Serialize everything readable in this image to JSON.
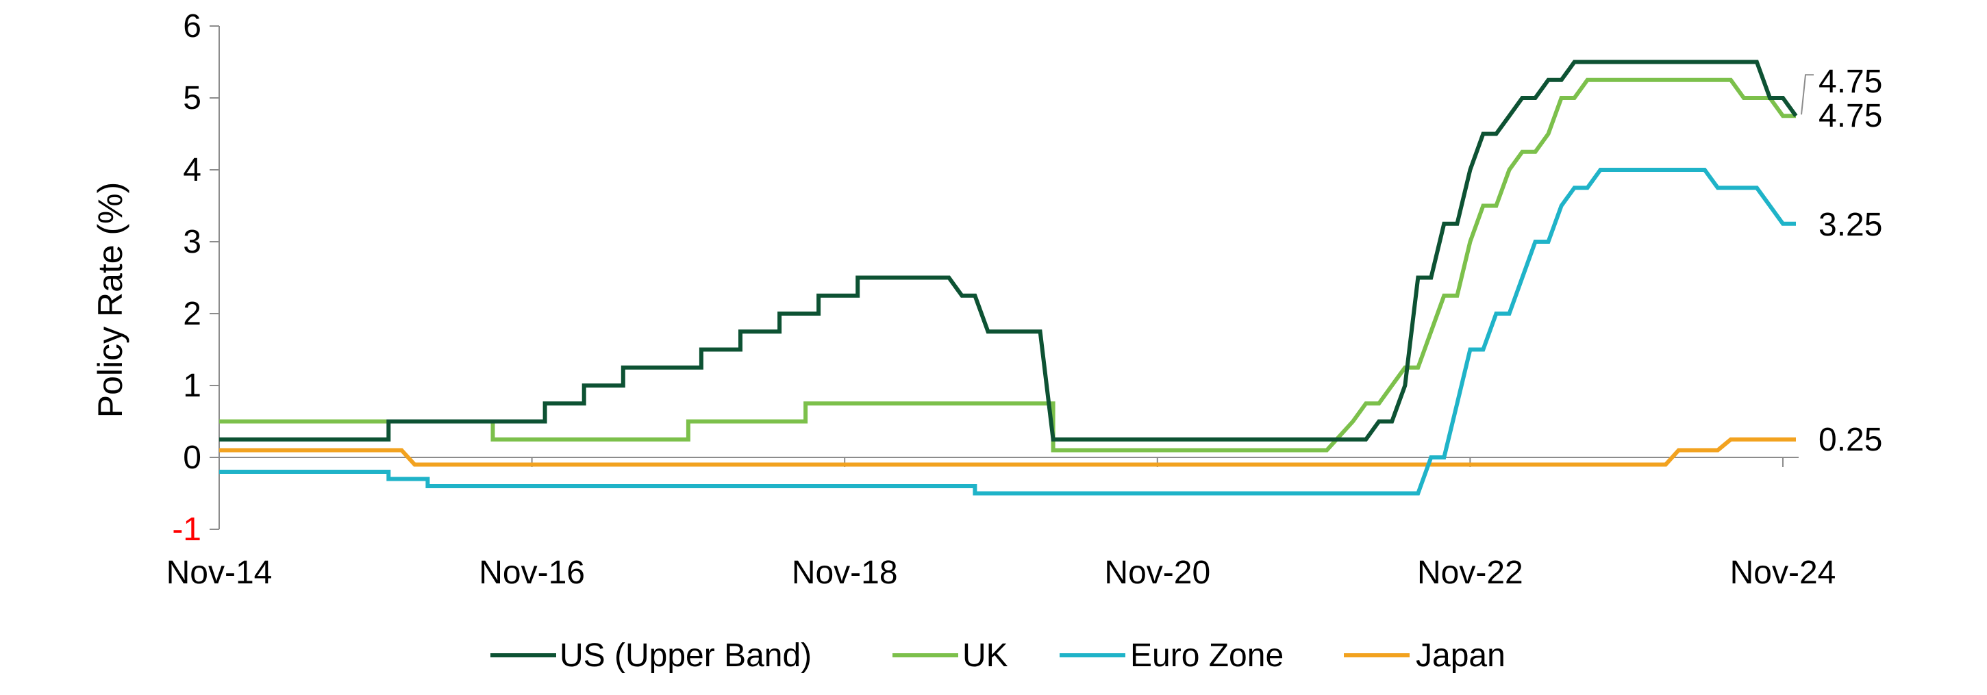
{
  "chart_data": {
    "type": "line",
    "ylabel": "Policy Rate (%)",
    "ylim": [
      -1,
      6
    ],
    "y_ticks": [
      {
        "label": "-1",
        "value": -1,
        "color": "#ff0000"
      },
      {
        "label": "0",
        "value": 0,
        "color": "#000000"
      },
      {
        "label": "1",
        "value": 1,
        "color": "#000000"
      },
      {
        "label": "2",
        "value": 2,
        "color": "#000000"
      },
      {
        "label": "3",
        "value": 3,
        "color": "#000000"
      },
      {
        "label": "4",
        "value": 4,
        "color": "#000000"
      },
      {
        "label": "5",
        "value": 5,
        "color": "#000000"
      },
      {
        "label": "6",
        "value": 6,
        "color": "#000000"
      }
    ],
    "x_range": [
      "2014-11",
      "2024-12"
    ],
    "x_ticks": [
      {
        "label": "Nov-14",
        "date": "2014-11"
      },
      {
        "label": "Nov-16",
        "date": "2016-11"
      },
      {
        "label": "Nov-18",
        "date": "2018-11"
      },
      {
        "label": "Nov-20",
        "date": "2020-11"
      },
      {
        "label": "Nov-22",
        "date": "2022-11"
      },
      {
        "label": "Nov-24",
        "date": "2024-11"
      }
    ],
    "legend_position": "bottom",
    "series": [
      {
        "name": "US (Upper Band)",
        "color": "#0d5233",
        "end_label": "4.75",
        "points": [
          [
            "2014-11",
            0.25
          ],
          [
            "2015-12",
            0.25
          ],
          [
            "2015-12",
            0.5
          ],
          [
            "2016-12",
            0.5
          ],
          [
            "2016-12",
            0.75
          ],
          [
            "2017-03",
            0.75
          ],
          [
            "2017-03",
            1.0
          ],
          [
            "2017-06",
            1.0
          ],
          [
            "2017-06",
            1.25
          ],
          [
            "2017-12",
            1.25
          ],
          [
            "2017-12",
            1.5
          ],
          [
            "2018-03",
            1.5
          ],
          [
            "2018-03",
            1.75
          ],
          [
            "2018-06",
            1.75
          ],
          [
            "2018-06",
            2.0
          ],
          [
            "2018-09",
            2.0
          ],
          [
            "2018-09",
            2.25
          ],
          [
            "2018-12",
            2.25
          ],
          [
            "2018-12",
            2.5
          ],
          [
            "2019-07",
            2.5
          ],
          [
            "2019-08",
            2.25
          ],
          [
            "2019-09",
            2.25
          ],
          [
            "2019-10",
            1.75
          ],
          [
            "2020-02",
            1.75
          ],
          [
            "2020-03",
            0.25
          ],
          [
            "2022-03",
            0.25
          ],
          [
            "2022-04",
            0.5
          ],
          [
            "2022-05",
            0.5
          ],
          [
            "2022-06",
            1.0
          ],
          [
            "2022-07",
            2.5
          ],
          [
            "2022-08",
            2.5
          ],
          [
            "2022-09",
            3.25
          ],
          [
            "2022-10",
            3.25
          ],
          [
            "2022-11",
            4.0
          ],
          [
            "2022-12",
            4.5
          ],
          [
            "2023-01",
            4.5
          ],
          [
            "2023-02",
            4.75
          ],
          [
            "2023-03",
            5.0
          ],
          [
            "2023-04",
            5.0
          ],
          [
            "2023-05",
            5.25
          ],
          [
            "2023-06",
            5.25
          ],
          [
            "2023-07",
            5.5
          ],
          [
            "2024-09",
            5.5
          ],
          [
            "2024-10",
            5.0
          ],
          [
            "2024-11",
            5.0
          ],
          [
            "2024-12",
            4.75
          ]
        ]
      },
      {
        "name": "UK",
        "color": "#7cc04b",
        "end_label": "4.75",
        "points": [
          [
            "2014-11",
            0.5
          ],
          [
            "2016-08",
            0.5
          ],
          [
            "2016-08",
            0.25
          ],
          [
            "2017-11",
            0.25
          ],
          [
            "2017-11",
            0.5
          ],
          [
            "2018-08",
            0.5
          ],
          [
            "2018-08",
            0.75
          ],
          [
            "2020-03",
            0.75
          ],
          [
            "2020-03",
            0.1
          ],
          [
            "2021-12",
            0.1
          ],
          [
            "2022-02",
            0.5
          ],
          [
            "2022-03",
            0.75
          ],
          [
            "2022-04",
            0.75
          ],
          [
            "2022-05",
            1.0
          ],
          [
            "2022-06",
            1.25
          ],
          [
            "2022-07",
            1.25
          ],
          [
            "2022-08",
            1.75
          ],
          [
            "2022-09",
            2.25
          ],
          [
            "2022-10",
            2.25
          ],
          [
            "2022-11",
            3.0
          ],
          [
            "2022-12",
            3.5
          ],
          [
            "2023-01",
            3.5
          ],
          [
            "2023-02",
            4.0
          ],
          [
            "2023-03",
            4.25
          ],
          [
            "2023-04",
            4.25
          ],
          [
            "2023-05",
            4.5
          ],
          [
            "2023-06",
            5.0
          ],
          [
            "2023-07",
            5.0
          ],
          [
            "2023-08",
            5.25
          ],
          [
            "2024-07",
            5.25
          ],
          [
            "2024-08",
            5.0
          ],
          [
            "2024-10",
            5.0
          ],
          [
            "2024-11",
            4.75
          ],
          [
            "2024-12",
            4.75
          ]
        ]
      },
      {
        "name": "Euro Zone",
        "color": "#1fb3c8",
        "end_label": "3.25",
        "points": [
          [
            "2014-11",
            -0.2
          ],
          [
            "2015-12",
            -0.2
          ],
          [
            "2015-12",
            -0.3
          ],
          [
            "2016-03",
            -0.3
          ],
          [
            "2016-03",
            -0.4
          ],
          [
            "2019-09",
            -0.4
          ],
          [
            "2019-09",
            -0.5
          ],
          [
            "2022-07",
            -0.5
          ],
          [
            "2022-08",
            0.0
          ],
          [
            "2022-09",
            0.0
          ],
          [
            "2022-10",
            0.75
          ],
          [
            "2022-11",
            1.5
          ],
          [
            "2022-12",
            1.5
          ],
          [
            "2023-01",
            2.0
          ],
          [
            "2023-02",
            2.0
          ],
          [
            "2023-03",
            2.5
          ],
          [
            "2023-04",
            3.0
          ],
          [
            "2023-05",
            3.0
          ],
          [
            "2023-06",
            3.5
          ],
          [
            "2023-07",
            3.75
          ],
          [
            "2023-08",
            3.75
          ],
          [
            "2023-09",
            4.0
          ],
          [
            "2024-05",
            4.0
          ],
          [
            "2024-06",
            3.75
          ],
          [
            "2024-09",
            3.75
          ],
          [
            "2024-10",
            3.5
          ],
          [
            "2024-11",
            3.25
          ],
          [
            "2024-12",
            3.25
          ]
        ]
      },
      {
        "name": "Japan",
        "color": "#f2a21f",
        "end_label": "0.25",
        "points": [
          [
            "2014-11",
            0.1
          ],
          [
            "2016-01",
            0.1
          ],
          [
            "2016-02",
            -0.1
          ],
          [
            "2024-02",
            -0.1
          ],
          [
            "2024-03",
            0.1
          ],
          [
            "2024-06",
            0.1
          ],
          [
            "2024-07",
            0.25
          ],
          [
            "2024-12",
            0.25
          ]
        ]
      }
    ]
  }
}
